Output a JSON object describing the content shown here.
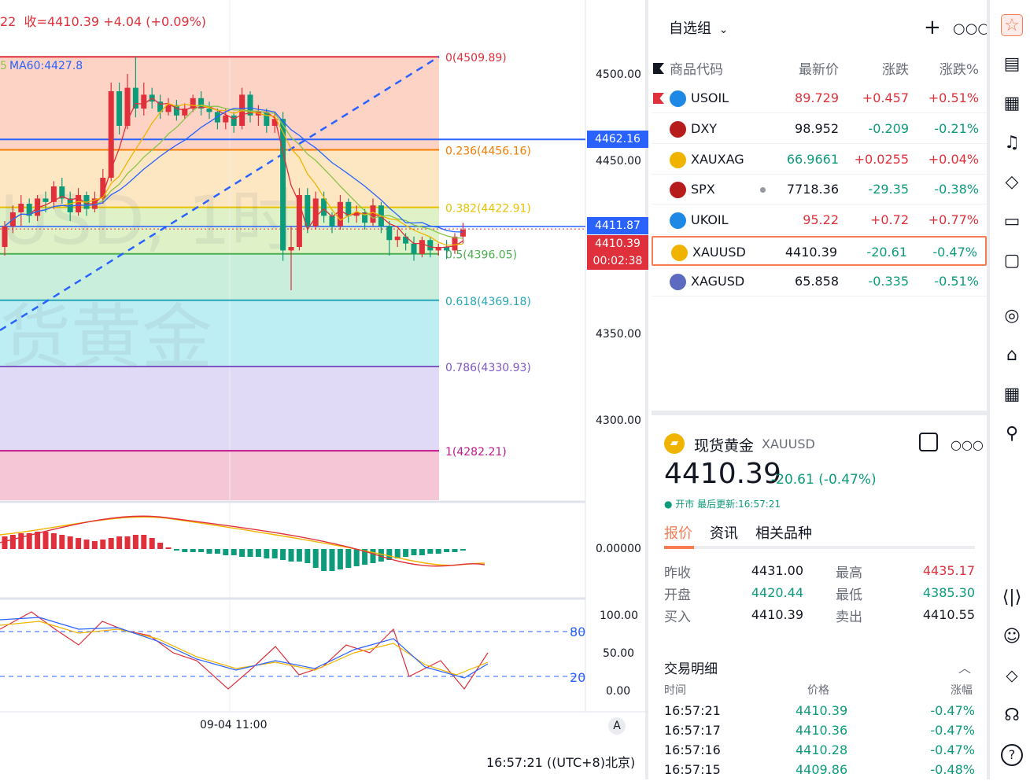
{
  "chart": {
    "header_text": "22  收=4410.39 +4.04 (+0.09%)",
    "ma_label": "MA60:4427.8",
    "ma_prefix": "5",
    "watermark_top": "USD, 1时",
    "watermark_bottom": "货黄金",
    "fib_levels": [
      {
        "label": "0(4509.89)",
        "price": 4509.89,
        "color": "#e0303b"
      },
      {
        "label": "0.236(4456.16)",
        "price": 4456.16,
        "color": "#f57c00"
      },
      {
        "label": "0.382(4422.91)",
        "price": 4422.91,
        "color": "#e6c200"
      },
      {
        "label": "0.5(4396.05)",
        "price": 4396.05,
        "color": "#4caf50"
      },
      {
        "label": "0.618(4369.18)",
        "price": 4369.18,
        "color": "#26a6b7"
      },
      {
        "label": "0.786(4330.93)",
        "price": 4330.93,
        "color": "#7e57c2"
      },
      {
        "label": "1(4282.21)",
        "price": 4282.21,
        "color": "#c2188b"
      }
    ],
    "price_axis": [
      "4500.00",
      "4450.00",
      "4350.00",
      "4300.00"
    ],
    "price_axis_values": [
      4500,
      4450,
      4350,
      4300
    ],
    "blue_line_label": "4462.16",
    "blue_line_price": 4462.16,
    "last_line_label": "4411.87",
    "last_line_price": 4411.87,
    "current_price_label": "4410.39",
    "countdown": "00:02:38",
    "macd_axis": "0.00000",
    "rsi_axis": [
      "100.00",
      "50.00",
      "0.00"
    ],
    "rsi_levels": [
      "80",
      "20"
    ],
    "time_label": "09-04 11:00",
    "auto_label": "A",
    "clock": "16:57:21 ((UTC+8)北京)",
    "colors": {
      "up": "#e0303b",
      "down": "#0c9b7b",
      "blue": "#2962ff"
    }
  },
  "watchlist": {
    "title": "自选组",
    "add_icon": "plus-icon",
    "more_icon": "more-icon",
    "columns": {
      "symbol": "商品代码",
      "last": "最新价",
      "change": "涨跌",
      "change_pct": "涨跌%"
    },
    "rows": [
      {
        "symbol": "USOIL",
        "last": "89.729",
        "change": "+0.457",
        "pct": "+0.51%",
        "dir": "up",
        "icon_color": "#1e88e5"
      },
      {
        "symbol": "DXY",
        "last": "98.952",
        "change": "-0.209",
        "pct": "-0.21%",
        "dir": "dn",
        "icon_color": "#b71c1c"
      },
      {
        "symbol": "XAUXAG",
        "last": "66.9661",
        "change": "+0.0255",
        "pct": "+0.04%",
        "dir": "up",
        "icon_color": "#f0b400"
      },
      {
        "symbol": "SPX",
        "last": "7718.36",
        "change": "-29.35",
        "pct": "-0.38%",
        "dir": "dn",
        "icon_color": "#b71c1c"
      },
      {
        "symbol": "UKOIL",
        "last": "95.22",
        "change": "+0.72",
        "pct": "+0.77%",
        "dir": "up",
        "icon_color": "#1e88e5"
      },
      {
        "symbol": "XAUUSD",
        "last": "4410.39",
        "change": "-20.61",
        "pct": "-0.47%",
        "dir": "dn",
        "icon_color": "#f0b400"
      },
      {
        "symbol": "XAGUSD",
        "last": "65.858",
        "change": "-0.335",
        "pct": "-0.51%",
        "dir": "dn",
        "icon_color": "#5c6bc0"
      }
    ]
  },
  "detail": {
    "name": "现货黄金",
    "symbol": "XAUUSD",
    "price": "4410.39",
    "change": "-20.61 (-0.47%)",
    "status": "● 开市  最后更新:16:57:21",
    "tabs": [
      "报价",
      "资讯",
      "相关品种"
    ],
    "quotes": [
      {
        "l1": "昨收",
        "v1": "4431.00",
        "c1": "blk",
        "l2": "最高",
        "v2": "4435.17",
        "c2": "up"
      },
      {
        "l1": "开盘",
        "v1": "4420.44",
        "c1": "dn",
        "l2": "最低",
        "v2": "4385.30",
        "c2": "dn"
      },
      {
        "l1": "买入",
        "v1": "4410.39",
        "c1": "blk",
        "l2": "卖出",
        "v2": "4410.55",
        "c2": "blk"
      }
    ],
    "trades_title": "交易明细",
    "trade_cols": {
      "time": "时间",
      "price": "价格",
      "pct": "涨幅"
    },
    "trades": [
      {
        "time": "16:57:21",
        "price": "4410.39",
        "pct": "-0.47%"
      },
      {
        "time": "16:57:17",
        "price": "4410.36",
        "pct": "-0.47%"
      },
      {
        "time": "16:57:16",
        "price": "4410.28",
        "pct": "-0.47%"
      },
      {
        "time": "16:57:15",
        "price": "4409.86",
        "pct": "-0.48%"
      }
    ]
  },
  "sidebar_icons": [
    "watchlist-icon",
    "news-icon",
    "calendar-icon",
    "alert-icon",
    "layers-icon",
    "video-icon",
    "chat-icon",
    "target-icon",
    "education-icon",
    "table-icon",
    "network-icon",
    "data-window-icon",
    "chatbot-icon",
    "handshake-icon",
    "support-icon",
    "help-icon"
  ]
}
